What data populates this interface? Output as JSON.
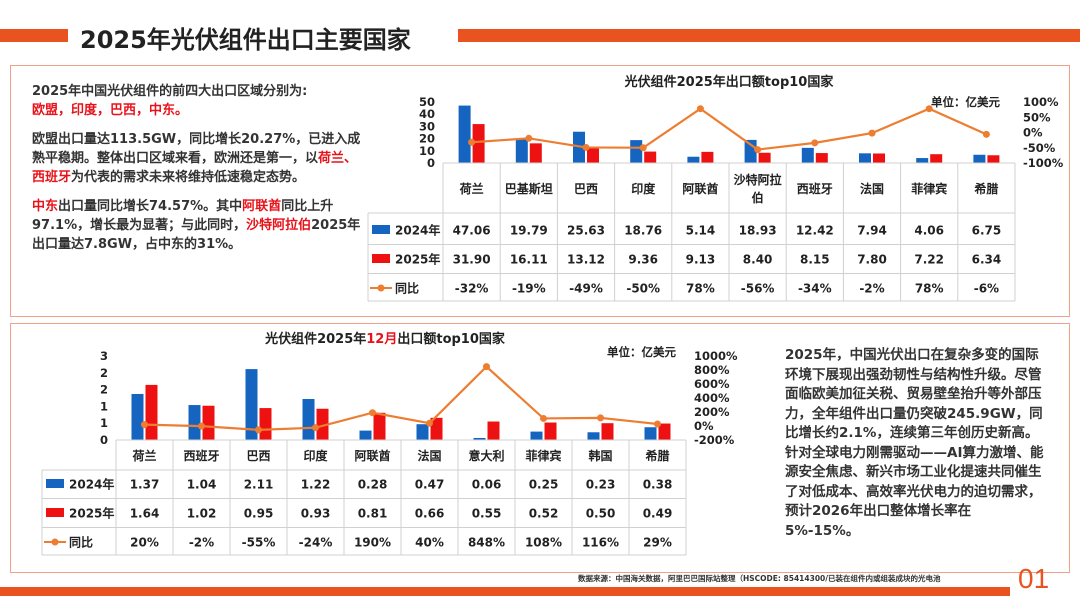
{
  "header": {
    "title": "2025年光伏组件出口主要国家"
  },
  "panel1": {
    "intro": "2025年中国光伏组件的前四大出口区域分别为:",
    "regions": "欧盟，印度，巴西，中东。",
    "p2_a": "欧盟出口量达113.5GW，同比增长20.27%，已进入成熟平稳期。整体出口区域来看，欧洲还是第一，以",
    "p2_red": "荷兰、西班牙",
    "p2_b": "为代表的需求未来将维持低速稳定态势。",
    "p3_red1": "中东",
    "p3_a": "出口量同比增长74.57%。其中",
    "p3_red2": "阿联酋",
    "p3_b": "同比上升97.1%，增长最为显著；与此同时，",
    "p3_red3": "沙特阿拉伯",
    "p3_c": "2025年出口量达7.8GW，占中东的31%。"
  },
  "panel2": {
    "text": "2025年，中国光伏出口在复杂多变的国际环境下展现出强劲韧性与结构性升级。尽管面临欧美加征关税、贸易壁垒抬升等外部压力，全年组件出口量仍突破245.9GW，同比增长约2.1%，连续第三年创历史新高。针对全球电力刚需驱动——AI算力激增、能源安全焦虑、新兴市场工业化提速共同催生了对低成本、高效率光伏电力的迫切需求，预计2026年出口整体增长率在5%-15%。"
  },
  "footer": {
    "source": "数据来源：中国海关数据，阿里巴巴国际站整理（HSCODE: 85414300/已装在组件内或组装成块的光电池",
    "page": "01"
  },
  "colors": {
    "accent": "#e8531f",
    "blue": "#1565c0",
    "red": "#ee1111",
    "line": "#ed7d31"
  },
  "chart_data": [
    {
      "type": "bar",
      "title": "光伏组件2025年出口额top10国家",
      "unit": "单位：亿美元",
      "categories": [
        "荷兰",
        "巴基斯坦",
        "巴西",
        "印度",
        "阿联酋",
        "沙特阿拉伯",
        "西班牙",
        "法国",
        "菲律宾",
        "希腊"
      ],
      "series": [
        {
          "name": "2024年",
          "values": [
            47.06,
            19.79,
            25.63,
            18.76,
            5.14,
            18.93,
            12.42,
            7.94,
            4.06,
            6.75
          ],
          "labels": [
            "47.06",
            "19.79",
            "25.63",
            "18.76",
            "5.14",
            "18.93",
            "12.42",
            "7.94",
            "4.06",
            "6.75"
          ]
        },
        {
          "name": "2025年",
          "values": [
            31.9,
            16.11,
            13.12,
            9.36,
            9.13,
            8.4,
            8.15,
            7.8,
            7.22,
            6.34
          ],
          "labels": [
            "31.90",
            "16.11",
            "13.12",
            "9.36",
            "9.13",
            "8.40",
            "8.15",
            "7.80",
            "7.22",
            "6.34"
          ]
        },
        {
          "name": "同比",
          "kind": "line",
          "values": [
            -32,
            -19,
            -49,
            -50,
            78,
            -56,
            -34,
            -2,
            78,
            -6
          ],
          "labels": [
            "-32%",
            "-19%",
            "-49%",
            "-50%",
            "78%",
            "-56%",
            "-34%",
            "-2%",
            "78%",
            "-6%"
          ]
        }
      ],
      "y_left": {
        "ticks": [
          "50",
          "40",
          "30",
          "20",
          "10",
          "0"
        ],
        "range": [
          0,
          50
        ]
      },
      "y_right": {
        "ticks": [
          "100%",
          "50%",
          "0%",
          "-50%",
          "-100%"
        ],
        "range": [
          -100,
          100
        ]
      }
    },
    {
      "type": "bar",
      "title_a": "光伏组件2025年",
      "title_red": "12月",
      "title_b": "出口额top10国家",
      "unit": "单位：亿美元",
      "categories": [
        "荷兰",
        "西班牙",
        "巴西",
        "印度",
        "阿联酋",
        "法国",
        "意大利",
        "菲律宾",
        "韩国",
        "希腊"
      ],
      "series": [
        {
          "name": "2024年",
          "values": [
            1.37,
            1.04,
            2.11,
            1.22,
            0.28,
            0.47,
            0.06,
            0.25,
            0.23,
            0.38
          ],
          "labels": [
            "1.37",
            "1.04",
            "2.11",
            "1.22",
            "0.28",
            "0.47",
            "0.06",
            "0.25",
            "0.23",
            "0.38"
          ]
        },
        {
          "name": "2025年",
          "values": [
            1.64,
            1.02,
            0.95,
            0.93,
            0.81,
            0.66,
            0.55,
            0.52,
            0.5,
            0.49
          ],
          "labels": [
            "1.64",
            "1.02",
            "0.95",
            "0.93",
            "0.81",
            "0.66",
            "0.55",
            "0.52",
            "0.50",
            "0.49"
          ]
        },
        {
          "name": "同比",
          "kind": "line",
          "values": [
            20,
            -2,
            -55,
            -24,
            190,
            40,
            848,
            108,
            116,
            29
          ],
          "labels": [
            "20%",
            "-2%",
            "-55%",
            "-24%",
            "190%",
            "40%",
            "848%",
            "108%",
            "116%",
            "29%"
          ]
        }
      ],
      "y_left": {
        "ticks": [
          "3",
          "2",
          "2",
          "1",
          "1",
          "0"
        ],
        "range": [
          0,
          2.5
        ]
      },
      "y_right": {
        "ticks": [
          "1000%",
          "800%",
          "600%",
          "400%",
          "200%",
          "0%",
          "-200%"
        ],
        "range": [
          -200,
          1000
        ]
      }
    }
  ]
}
